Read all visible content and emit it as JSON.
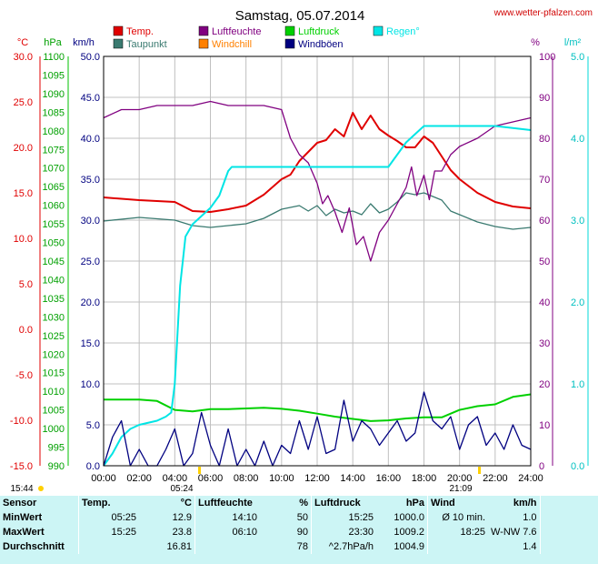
{
  "title": "Samstag, 05.07.2014",
  "source": "www.wetter-pfalzen.com",
  "axis_units": {
    "temp": "°C",
    "pressure": "hPa",
    "wind": "km/h",
    "humidity": "%",
    "rain": "l/m²"
  },
  "legend": [
    {
      "label": "Temp.",
      "color": "#e00000"
    },
    {
      "label": "Taupunkt",
      "color": "#3a7a70"
    },
    {
      "label": "Luftfeuchte",
      "color": "#800080"
    },
    {
      "label": "Windchill",
      "color": "#ff8000"
    },
    {
      "label": "Luftdruck",
      "color": "#00d000"
    },
    {
      "label": "Windböen",
      "color": "#000080"
    },
    {
      "label": "Regen°",
      "color": "#00e5e5"
    }
  ],
  "markers": {
    "sunrise": "05:24",
    "sunset": "21:09",
    "moon": "15:44"
  },
  "colors": {
    "bg": "#ffffff",
    "plot_bg": "#ffffff",
    "grid": "#c0c0c0",
    "stats_bg": "#ccf5f5"
  },
  "chart_data": {
    "type": "line",
    "x_ticks": [
      "00:00",
      "02:00",
      "04:00",
      "06:00",
      "08:00",
      "10:00",
      "12:00",
      "14:00",
      "16:00",
      "18:00",
      "20:00",
      "22:00",
      "24:00"
    ],
    "xlim": [
      0,
      24
    ],
    "axes": {
      "temp": {
        "ticks": [
          "30.0",
          "25.0",
          "20.0",
          "15.0",
          "10.0",
          "5.0",
          "0.0",
          "-5.0",
          "-10.0",
          "-15.0"
        ],
        "range": [
          -15,
          30
        ]
      },
      "pressure": {
        "ticks": [
          "1100",
          "1095",
          "1090",
          "1085",
          "1080",
          "1075",
          "1070",
          "1065",
          "1060",
          "1055",
          "1050",
          "1045",
          "1040",
          "1035",
          "1030",
          "1025",
          "1020",
          "1015",
          "1010",
          "1005",
          "1000",
          "995",
          "990"
        ],
        "range": [
          990,
          1100
        ]
      },
      "wind": {
        "ticks": [
          "50.0",
          "45.0",
          "40.0",
          "35.0",
          "30.0",
          "25.0",
          "20.0",
          "15.0",
          "10.0",
          "5.0",
          "0.0"
        ],
        "range": [
          0,
          50
        ]
      },
      "humidity": {
        "ticks": [
          "100",
          "90",
          "80",
          "70",
          "60",
          "50",
          "40",
          "30",
          "20",
          "10",
          "0"
        ],
        "range": [
          0,
          100
        ]
      },
      "rain": {
        "ticks": [
          "5.0",
          "4.0",
          "3.0",
          "2.0",
          "1.0",
          "0.0"
        ],
        "range": [
          0,
          5
        ]
      }
    },
    "series": [
      {
        "name": "Temp.",
        "axis": "temp",
        "color": "#e00000",
        "x": [
          0,
          2,
          4,
          5,
          6,
          7,
          8,
          9,
          10,
          10.5,
          11,
          11.5,
          12,
          12.5,
          13,
          13.5,
          14,
          14.5,
          15,
          15.5,
          16,
          16.5,
          17,
          17.5,
          18,
          18.5,
          19,
          19.5,
          20,
          21,
          22,
          23,
          24
        ],
        "y": [
          14.5,
          14.2,
          14.0,
          13.0,
          12.9,
          13.2,
          13.6,
          14.8,
          16.5,
          17.0,
          18.5,
          19.5,
          20.5,
          20.8,
          22.0,
          21.2,
          23.8,
          22.0,
          23.5,
          22.0,
          21.3,
          20.7,
          20.0,
          20.0,
          21.2,
          20.5,
          19.0,
          17.5,
          16.5,
          15.0,
          14.0,
          13.5,
          13.3
        ]
      },
      {
        "name": "Taupunkt",
        "axis": "temp",
        "color": "#3a7a70",
        "x": [
          0,
          2,
          4,
          5,
          6,
          7,
          8,
          9,
          10,
          11,
          11.5,
          12,
          12.5,
          13,
          13.5,
          14,
          14.5,
          15,
          15.5,
          16,
          16.5,
          17,
          17.5,
          18,
          18.5,
          19,
          19.5,
          20,
          21,
          22,
          23,
          24
        ],
        "y": [
          11.9,
          12.3,
          12.0,
          11.4,
          11.2,
          11.4,
          11.6,
          12.2,
          13.2,
          13.6,
          13.0,
          13.6,
          12.5,
          13.2,
          12.8,
          13.0,
          12.6,
          13.8,
          12.8,
          13.2,
          14.0,
          15.0,
          14.8,
          15.0,
          14.6,
          14.2,
          13.0,
          12.6,
          11.8,
          11.3,
          11.0,
          11.2
        ]
      },
      {
        "name": "Luftfeuchte",
        "axis": "humidity",
        "color": "#800080",
        "x": [
          0,
          1,
          2,
          3,
          4,
          5,
          6,
          7,
          8,
          9,
          10,
          10.5,
          11,
          11.5,
          12,
          12.3,
          12.6,
          13,
          13.4,
          13.8,
          14.2,
          14.6,
          15,
          15.5,
          16,
          16.5,
          17,
          17.3,
          17.6,
          18,
          18.3,
          18.6,
          19,
          19.5,
          20,
          21,
          22,
          23,
          24
        ],
        "y": [
          85,
          87,
          87,
          88,
          88,
          88,
          89,
          88,
          88,
          88,
          87,
          80,
          76,
          74,
          69,
          64,
          66,
          62,
          57,
          63,
          54,
          56,
          50,
          57,
          60,
          64,
          68,
          73,
          66,
          71,
          65,
          72,
          72,
          76,
          78,
          80,
          83,
          84,
          85
        ]
      },
      {
        "name": "Luftdruck",
        "axis": "pressure",
        "color": "#00d000",
        "x": [
          0,
          2,
          3,
          4,
          5,
          6,
          7,
          8,
          9,
          10,
          11,
          12,
          13,
          14,
          15,
          16,
          17,
          18,
          19,
          20,
          21,
          22,
          23,
          24
        ],
        "y": [
          1007.8,
          1007.8,
          1007.4,
          1005.0,
          1004.6,
          1005.2,
          1005.2,
          1005.4,
          1005.6,
          1005.3,
          1004.8,
          1004.0,
          1003.2,
          1002.6,
          1002.0,
          1002.2,
          1002.7,
          1003.0,
          1003.0,
          1005.0,
          1006.0,
          1006.5,
          1008.5,
          1009.2
        ]
      },
      {
        "name": "Regen°",
        "axis": "rain",
        "color": "#00e5e5",
        "x": [
          0,
          0.5,
          1,
          1.5,
          2,
          3,
          3.5,
          3.8,
          4,
          4.3,
          4.6,
          5,
          5.5,
          6,
          6.5,
          7,
          7.2,
          8,
          10,
          14,
          16,
          17,
          18,
          20,
          22,
          24
        ],
        "y": [
          0,
          0.15,
          0.35,
          0.45,
          0.5,
          0.55,
          0.6,
          0.65,
          1.0,
          2.2,
          2.8,
          2.95,
          3.05,
          3.15,
          3.3,
          3.6,
          3.65,
          3.65,
          3.65,
          3.65,
          3.65,
          3.95,
          4.15,
          4.15,
          4.15,
          4.1
        ]
      },
      {
        "name": "Windböen",
        "axis": "wind",
        "color": "#000080",
        "x": [
          0,
          0.5,
          1,
          1.5,
          2,
          2.5,
          3,
          3.5,
          4,
          4.5,
          5,
          5.5,
          6,
          6.5,
          7,
          7.5,
          8,
          8.5,
          9,
          9.5,
          10,
          10.5,
          11,
          11.5,
          12,
          12.5,
          13,
          13.5,
          14,
          14.5,
          15,
          15.5,
          16,
          16.5,
          17,
          17.5,
          18,
          18.5,
          19,
          19.5,
          20,
          20.5,
          21,
          21.5,
          22,
          22.5,
          23,
          23.5,
          24
        ],
        "y": [
          0,
          3.5,
          5.5,
          0,
          2,
          0,
          0,
          2,
          4.5,
          0,
          1.5,
          6.5,
          2.5,
          0,
          4.5,
          0,
          2,
          0,
          3,
          0,
          2.5,
          1.5,
          5.5,
          2,
          6,
          1.5,
          2,
          8,
          3,
          5.5,
          4.5,
          2.5,
          4,
          5.5,
          3,
          4,
          9,
          5.5,
          4.5,
          6,
          2,
          5,
          6,
          2.5,
          4,
          2,
          5,
          2.5,
          2
        ]
      }
    ]
  },
  "stats": {
    "headers": {
      "sensor": "Sensor",
      "temp": "Temp.",
      "temp_unit": "°C",
      "hum": "Luftfeuchte",
      "hum_unit": "%",
      "press": "Luftdruck",
      "press_unit": "hPa",
      "wind": "Wind",
      "wind_unit": "km/h"
    },
    "rows": [
      {
        "label": "MinWert",
        "temp_time": "05:25",
        "temp_val": "12.9",
        "hum_time": "14:10",
        "hum_val": "50",
        "press_time": "15:25",
        "press_val": "1000.0",
        "wind_time": "Ø 10 min.",
        "wind_val": "1.0"
      },
      {
        "label": "MaxWert",
        "temp_time": "15:25",
        "temp_val": "23.8",
        "hum_time": "06:10",
        "hum_val": "90",
        "press_time": "23:30",
        "press_val": "1009.2",
        "wind_time": "18:25",
        "wind_val": "W-NW 7.6"
      },
      {
        "label": "Durchschnitt",
        "temp_time": "",
        "temp_val": "16.81",
        "hum_time": "",
        "hum_val": "78",
        "press_time": "^2.7hPa/h",
        "press_val": "1004.9",
        "wind_time": "",
        "wind_val": "1.4"
      }
    ]
  }
}
